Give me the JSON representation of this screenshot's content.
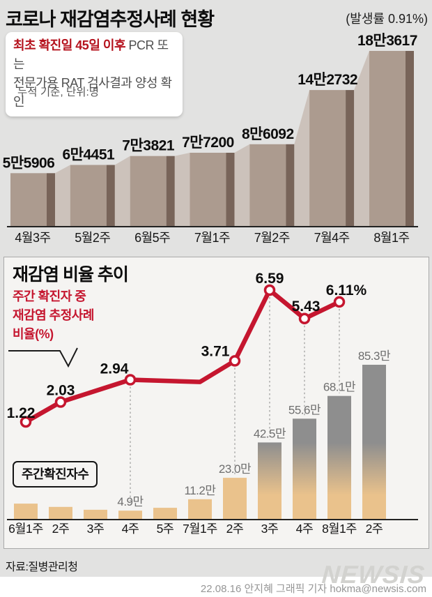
{
  "header": {
    "title": "코로나 재감염추정사례 현황",
    "incidence_note": "(발생률 0.91%)",
    "definition_box": {
      "highlight": "최초 확진일 45일 이후",
      "rest_line1": " PCR 또는",
      "line2": "전문가용 RAT 검사결과 양성 확인"
    },
    "unit_note": "누적 기준, 단위:명"
  },
  "panel2": {
    "title": "재감염 비율 추이",
    "note_lines": [
      "주간 확진자 중",
      "재감염 추정사례",
      "비율(%)"
    ],
    "legend_label": "주간확진자수"
  },
  "footer": {
    "source": "자료:질병관리청",
    "credit": "22.08.16 안지혜 그래픽 기자 hokma@newsis.com",
    "logo": "NEWSIS"
  },
  "colors": {
    "bg": "#e2e2e1",
    "panel_bg": "#f5f4f2",
    "taupe": "#ac9b8f",
    "taupe_dark": "#786459",
    "taupe_light": "#ccc2bb",
    "tan": "#eac28c",
    "gray_bar": "#8e8e8e",
    "accent_red": "#b5121d",
    "line_red": "#c5162f",
    "axis": "#222222",
    "dash": "#9a9a9a"
  },
  "chart_data": [
    {
      "id": "cumulative-reinfection",
      "type": "area",
      "title": "코로나 재감염추정사례 현황",
      "subtitle": "누적 기준, 단위:명",
      "categories": [
        "4월3주",
        "5월2주",
        "6월5주",
        "7월1주",
        "7월2주",
        "7월4주",
        "8월1주"
      ],
      "values": [
        55906,
        64451,
        73821,
        77200,
        86092,
        142732,
        183617
      ],
      "labels": [
        "5만5906",
        "6만4451",
        "7만3821",
        "7만7200",
        "8만6092",
        "14만2732",
        "18만3617"
      ],
      "ylim": [
        0,
        190000
      ],
      "grid": false,
      "style": "stepped-mountain"
    },
    {
      "id": "reinfection-ratio-trend",
      "type": "line+bar",
      "title": "재감염 비율 추이",
      "categories": [
        "6월1주",
        "2주",
        "3주",
        "4주",
        "5주",
        "7월1주",
        "2주",
        "3주",
        "4주",
        "8월1주",
        "2주"
      ],
      "bars": {
        "name": "주간확진자수",
        "unit": "만",
        "values": [
          8.8,
          7.0,
          5.4,
          4.9,
          6.5,
          11.2,
          23.0,
          42.5,
          55.6,
          68.1,
          85.3
        ],
        "labels": [
          "",
          "",
          "",
          "4.9만",
          "",
          "11.2만",
          "23.0만",
          "42.5만",
          "55.6만",
          "68.1만",
          "85.3만"
        ]
      },
      "line": {
        "name": "주간 확진자 중 재감염 추정사례 비율(%)",
        "ylim_hint": [
          1,
          7
        ],
        "points": [
          {
            "cat_index": 0,
            "value": 1.22,
            "label": "1.22",
            "marker": true,
            "dash": false
          },
          {
            "cat_index": 1,
            "value": 2.03,
            "label": "2.03",
            "marker": true,
            "dash": false
          },
          {
            "cat_index": 3,
            "value": 2.94,
            "label": "2.94",
            "marker": true,
            "dash": true
          },
          {
            "cat_index": 5,
            "value": 2.85,
            "label": "",
            "marker": false,
            "dash": false
          },
          {
            "cat_index": 6,
            "value": 3.71,
            "label": "3.71",
            "marker": true,
            "dash": true
          },
          {
            "cat_index": 7,
            "value": 6.59,
            "label": "6.59",
            "marker": true,
            "dash": true
          },
          {
            "cat_index": 8,
            "value": 5.43,
            "label": "5.43",
            "marker": true,
            "dash": true
          },
          {
            "cat_index": 9,
            "value": 6.11,
            "label": "6.11%",
            "marker": true,
            "dash": true
          }
        ]
      }
    }
  ]
}
